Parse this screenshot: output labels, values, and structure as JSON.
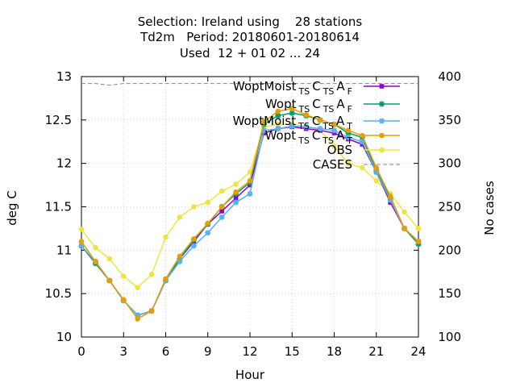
{
  "chart_data": {
    "type": "line",
    "title": [
      "Selection: Ireland using    28 stations",
      "Td2m   Period: 20180601-20180614",
      "Used  12 + 01 02 ... 24"
    ],
    "xlabel": "Hour",
    "ylabel": "deg C",
    "y2label": "No cases",
    "xlim": [
      0,
      24
    ],
    "ylim": [
      10,
      13
    ],
    "y2lim": [
      100,
      400
    ],
    "xticks": [
      0,
      3,
      6,
      9,
      12,
      15,
      18,
      21,
      24
    ],
    "yticks": [
      "10",
      "10.5",
      "11",
      "11.5",
      "12",
      "12.5",
      "13"
    ],
    "y2ticks": [
      100,
      150,
      200,
      250,
      300,
      350,
      400
    ],
    "grid": true,
    "legend_position": "top-right",
    "x": [
      0,
      1,
      2,
      3,
      4,
      5,
      6,
      7,
      8,
      9,
      10,
      11,
      12,
      13,
      14,
      15,
      16,
      17,
      18,
      19,
      20,
      21,
      22,
      23,
      24
    ],
    "series": [
      {
        "name": [
          "WoptMoist",
          "TS",
          "C",
          "TS",
          "A",
          "F"
        ],
        "color": "#9400d3",
        "marker": "square",
        "values": [
          11.05,
          10.85,
          10.65,
          10.42,
          10.25,
          10.3,
          10.65,
          10.9,
          11.1,
          11.3,
          11.45,
          11.6,
          11.75,
          12.35,
          12.4,
          12.42,
          12.4,
          12.38,
          12.35,
          12.28,
          12.22,
          11.9,
          11.55,
          11.25,
          11.1
        ]
      },
      {
        "name": [
          "Wopt",
          "TS",
          "C",
          "TS",
          "A",
          "F"
        ],
        "color": "#009e73",
        "marker": "star",
        "values": [
          11.05,
          10.85,
          10.65,
          10.42,
          10.25,
          10.3,
          10.65,
          10.9,
          11.12,
          11.3,
          11.5,
          11.65,
          11.78,
          12.45,
          12.55,
          12.58,
          12.55,
          12.5,
          12.45,
          12.35,
          12.3,
          11.92,
          11.6,
          11.25,
          11.07
        ]
      },
      {
        "name": [
          "WoptMoist",
          "TS",
          "C",
          "TS",
          "A",
          "T"
        ],
        "color": "#56b4e9",
        "marker": "star",
        "values": [
          11.05,
          10.87,
          10.65,
          10.42,
          10.25,
          10.3,
          10.65,
          10.87,
          11.05,
          11.2,
          11.38,
          11.55,
          11.65,
          12.38,
          12.4,
          12.43,
          12.42,
          12.4,
          12.38,
          12.3,
          12.25,
          11.9,
          11.58,
          11.25,
          11.1
        ]
      },
      {
        "name": [
          "Wopt",
          "TS",
          "C",
          "TS",
          "A",
          "T"
        ],
        "color": "#e69f00",
        "marker": "circle",
        "values": [
          11.1,
          10.87,
          10.65,
          10.43,
          10.21,
          10.3,
          10.67,
          10.93,
          11.13,
          11.31,
          11.5,
          11.67,
          11.8,
          12.48,
          12.6,
          12.63,
          12.56,
          12.5,
          12.45,
          12.38,
          12.32,
          11.95,
          11.62,
          11.25,
          11.1
        ]
      },
      {
        "name": [
          "OBS"
        ],
        "color": "#f0e442",
        "marker": "circle",
        "values": [
          11.24,
          11.03,
          10.9,
          10.7,
          10.57,
          10.72,
          11.15,
          11.38,
          11.5,
          11.55,
          11.68,
          11.76,
          11.9,
          12.42,
          12.45,
          12.45,
          12.43,
          12.38,
          12.2,
          12.0,
          11.95,
          11.8,
          11.65,
          11.44,
          11.25
        ]
      },
      {
        "name": [
          "CASES"
        ],
        "color": "#888888",
        "dashed": true,
        "axis": "y2",
        "values": [
          392,
          392,
          390,
          392,
          392,
          392,
          392,
          392,
          392,
          392,
          392,
          392,
          392,
          392,
          392,
          392,
          392,
          392,
          392,
          392,
          392,
          392,
          392,
          392,
          392
        ]
      }
    ]
  }
}
